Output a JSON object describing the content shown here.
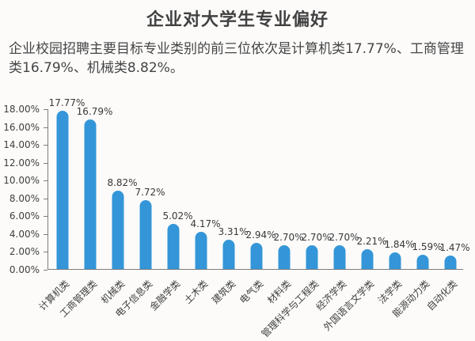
{
  "page": {
    "title": "企业对大学生专业偏好",
    "subtitle": "企业校园招聘主要目标专业类别的前三位依次是计算机类17.77%、工商管理类16.79%、机械类8.82%。"
  },
  "chart_data": {
    "type": "bar",
    "title": "企业对大学生专业偏好",
    "categories": [
      "计算机类",
      "工商管理类",
      "机械类",
      "电子信息类",
      "金融学类",
      "土木类",
      "建筑类",
      "电气类",
      "材料类",
      "管理科学与工程类",
      "经济学类",
      "外国语言文学类",
      "法学类",
      "能源动力类",
      "自动化类"
    ],
    "values": [
      17.77,
      16.79,
      8.82,
      7.72,
      5.02,
      4.17,
      3.31,
      2.94,
      2.7,
      2.7,
      2.7,
      2.21,
      1.84,
      1.59,
      1.47
    ],
    "labels": [
      "17.77%",
      "16.79%",
      "8.82%",
      "7.72%",
      "5.02%",
      "4.17%",
      "3.31%",
      "2.94%",
      "2.70%",
      "2.70%",
      "2.70%",
      "2.21%",
      "1.84%",
      "1.59%",
      "1.47%"
    ],
    "y_ticks": [
      "18.00%",
      "16.00%",
      "14.00%",
      "12.00%",
      "10.00%",
      "8.00%",
      "6.00%",
      "4.00%",
      "2.00%",
      "0.00%"
    ],
    "xlabel": "",
    "ylabel": "",
    "ylim": [
      0,
      18
    ],
    "grid": false,
    "legend": "none",
    "bar_color": "#3496d8",
    "axis_color": "#7d7d7d",
    "x_label_rotation_deg": -45
  }
}
